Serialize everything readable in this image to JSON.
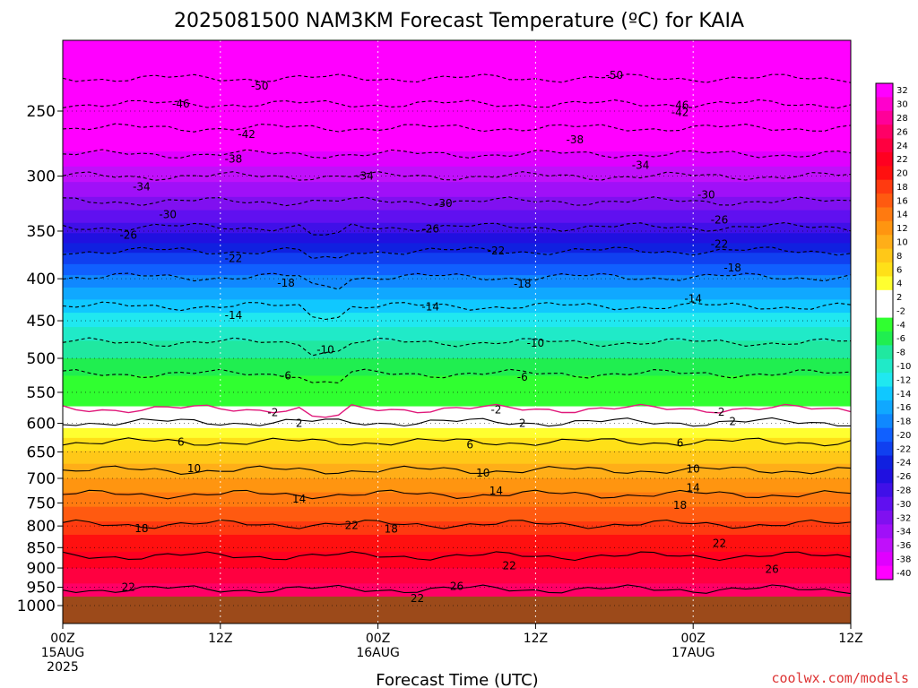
{
  "chart_data": {
    "type": "heatmap",
    "title": "2025081500 NAM3KM Forecast Temperature (ºC) for KAIA",
    "xlabel": "Forecast Time (UTC)",
    "ylabel": "",
    "x_ticks": [
      {
        "hour": 0,
        "lines": [
          "00Z",
          "15AUG",
          "2025"
        ]
      },
      {
        "hour": 12,
        "lines": [
          "12Z"
        ]
      },
      {
        "hour": 24,
        "lines": [
          "00Z",
          "16AUG"
        ]
      },
      {
        "hour": 36,
        "lines": [
          "12Z"
        ]
      },
      {
        "hour": 48,
        "lines": [
          "00Z",
          "17AUG"
        ]
      },
      {
        "hour": 60,
        "lines": [
          "12Z"
        ]
      }
    ],
    "xlim_hours": [
      0,
      60
    ],
    "y_pressure_levels_hPa": [
      250,
      300,
      350,
      400,
      450,
      500,
      550,
      600,
      650,
      700,
      750,
      800,
      850,
      900,
      950,
      1000
    ],
    "ylim_hPa": [
      200,
      1030
    ],
    "ground_level_hPa": 975,
    "colorbar": {
      "labels": [
        "32",
        "30",
        "28",
        "26",
        "24",
        "22",
        "20",
        "18",
        "16",
        "14",
        "12",
        "10",
        "8",
        "6",
        "4",
        "2",
        "-2",
        "-4",
        "-6",
        "-8",
        "-10",
        "-12",
        "-14",
        "-16",
        "-18",
        "-20",
        "-22",
        "-24",
        "-26",
        "-28",
        "-30",
        "-32",
        "-34",
        "-36",
        "-38",
        "-40"
      ],
      "colors": [
        "#ff00ff",
        "#ff00cc",
        "#ff0099",
        "#ff0066",
        "#ff0040",
        "#ff0020",
        "#ff1010",
        "#ff3a10",
        "#ff5a10",
        "#ff7a10",
        "#ff9510",
        "#ffae18",
        "#ffc818",
        "#ffe018",
        "#ffff30",
        "#ffffff",
        "#ffffff",
        "#30ff30",
        "#20ee50",
        "#20e8a0",
        "#20eac8",
        "#20e8f0",
        "#10c8ff",
        "#10a8ff",
        "#1088ff",
        "#1060ff",
        "#1040f0",
        "#1020e0",
        "#2010e0",
        "#4010e8",
        "#6010f0",
        "#8010f0",
        "#a010f8",
        "#c010fa",
        "#e000ff",
        "#ff00ff"
      ]
    },
    "contour_levels": [
      50,
      46,
      42,
      38,
      34,
      30,
      26,
      22,
      18,
      14,
      10,
      6,
      2,
      2,
      6,
      10,
      14,
      18,
      22,
      26
    ],
    "contour_labels_negative": [
      {
        "text": "50",
        "hour": 15,
        "p": 233
      },
      {
        "text": "50",
        "hour": 42,
        "p": 226
      },
      {
        "text": "46",
        "hour": 9,
        "p": 245
      },
      {
        "text": "46",
        "hour": 47,
        "p": 246
      },
      {
        "text": "42",
        "hour": 14,
        "p": 267
      },
      {
        "text": "42",
        "hour": 47,
        "p": 251
      },
      {
        "text": "38",
        "hour": 13,
        "p": 286
      },
      {
        "text": "38",
        "hour": 39,
        "p": 271
      },
      {
        "text": "34",
        "hour": 6,
        "p": 309
      },
      {
        "text": "34",
        "hour": 23,
        "p": 300
      },
      {
        "text": "34",
        "hour": 44,
        "p": 291
      },
      {
        "text": "30",
        "hour": 8,
        "p": 334
      },
      {
        "text": "30",
        "hour": 29,
        "p": 324
      },
      {
        "text": "30",
        "hour": 49,
        "p": 316
      },
      {
        "text": "26",
        "hour": 5,
        "p": 354
      },
      {
        "text": "26",
        "hour": 28,
        "p": 348
      },
      {
        "text": "26",
        "hour": 50,
        "p": 339
      },
      {
        "text": "22",
        "hour": 13,
        "p": 378
      },
      {
        "text": "22",
        "hour": 33,
        "p": 370
      },
      {
        "text": "22",
        "hour": 50,
        "p": 363
      },
      {
        "text": "18",
        "hour": 17,
        "p": 405
      },
      {
        "text": "18",
        "hour": 35,
        "p": 406
      },
      {
        "text": "18",
        "hour": 51,
        "p": 388
      },
      {
        "text": "14",
        "hour": 13,
        "p": 443
      },
      {
        "text": "14",
        "hour": 28,
        "p": 433
      },
      {
        "text": "14",
        "hour": 48,
        "p": 423
      },
      {
        "text": "10",
        "hour": 20,
        "p": 488
      },
      {
        "text": "10",
        "hour": 36,
        "p": 479
      },
      {
        "text": "6",
        "hour": 17,
        "p": 525
      },
      {
        "text": "6",
        "hour": 35,
        "p": 527
      },
      {
        "text": "2",
        "hour": 16,
        "p": 582
      },
      {
        "text": "2",
        "hour": 33,
        "p": 578
      },
      {
        "text": "2",
        "hour": 50,
        "p": 581
      }
    ],
    "contour_labels_positive": [
      {
        "text": "2",
        "hour": 18,
        "p": 600
      },
      {
        "text": "2",
        "hour": 35,
        "p": 600
      },
      {
        "text": "2",
        "hour": 51,
        "p": 597
      },
      {
        "text": "6",
        "hour": 9,
        "p": 632
      },
      {
        "text": "6",
        "hour": 31,
        "p": 637
      },
      {
        "text": "6",
        "hour": 47,
        "p": 634
      },
      {
        "text": "10",
        "hour": 10,
        "p": 681
      },
      {
        "text": "10",
        "hour": 32,
        "p": 690
      },
      {
        "text": "10",
        "hour": 48,
        "p": 682
      },
      {
        "text": "14",
        "hour": 18,
        "p": 742
      },
      {
        "text": "14",
        "hour": 33,
        "p": 725
      },
      {
        "text": "14",
        "hour": 48,
        "p": 719
      },
      {
        "text": "18",
        "hour": 6,
        "p": 806
      },
      {
        "text": "18",
        "hour": 25,
        "p": 807
      },
      {
        "text": "18",
        "hour": 47,
        "p": 755
      },
      {
        "text": "22",
        "hour": 22,
        "p": 799
      },
      {
        "text": "22",
        "hour": 34,
        "p": 894
      },
      {
        "text": "22",
        "hour": 50,
        "p": 840
      },
      {
        "text": "22",
        "hour": 5,
        "p": 950
      },
      {
        "text": "22",
        "hour": 27,
        "p": 980
      },
      {
        "text": "26",
        "hour": 30,
        "p": 948
      },
      {
        "text": "26",
        "hour": 54,
        "p": 903
      }
    ]
  },
  "credit": "coolwx.com/models"
}
